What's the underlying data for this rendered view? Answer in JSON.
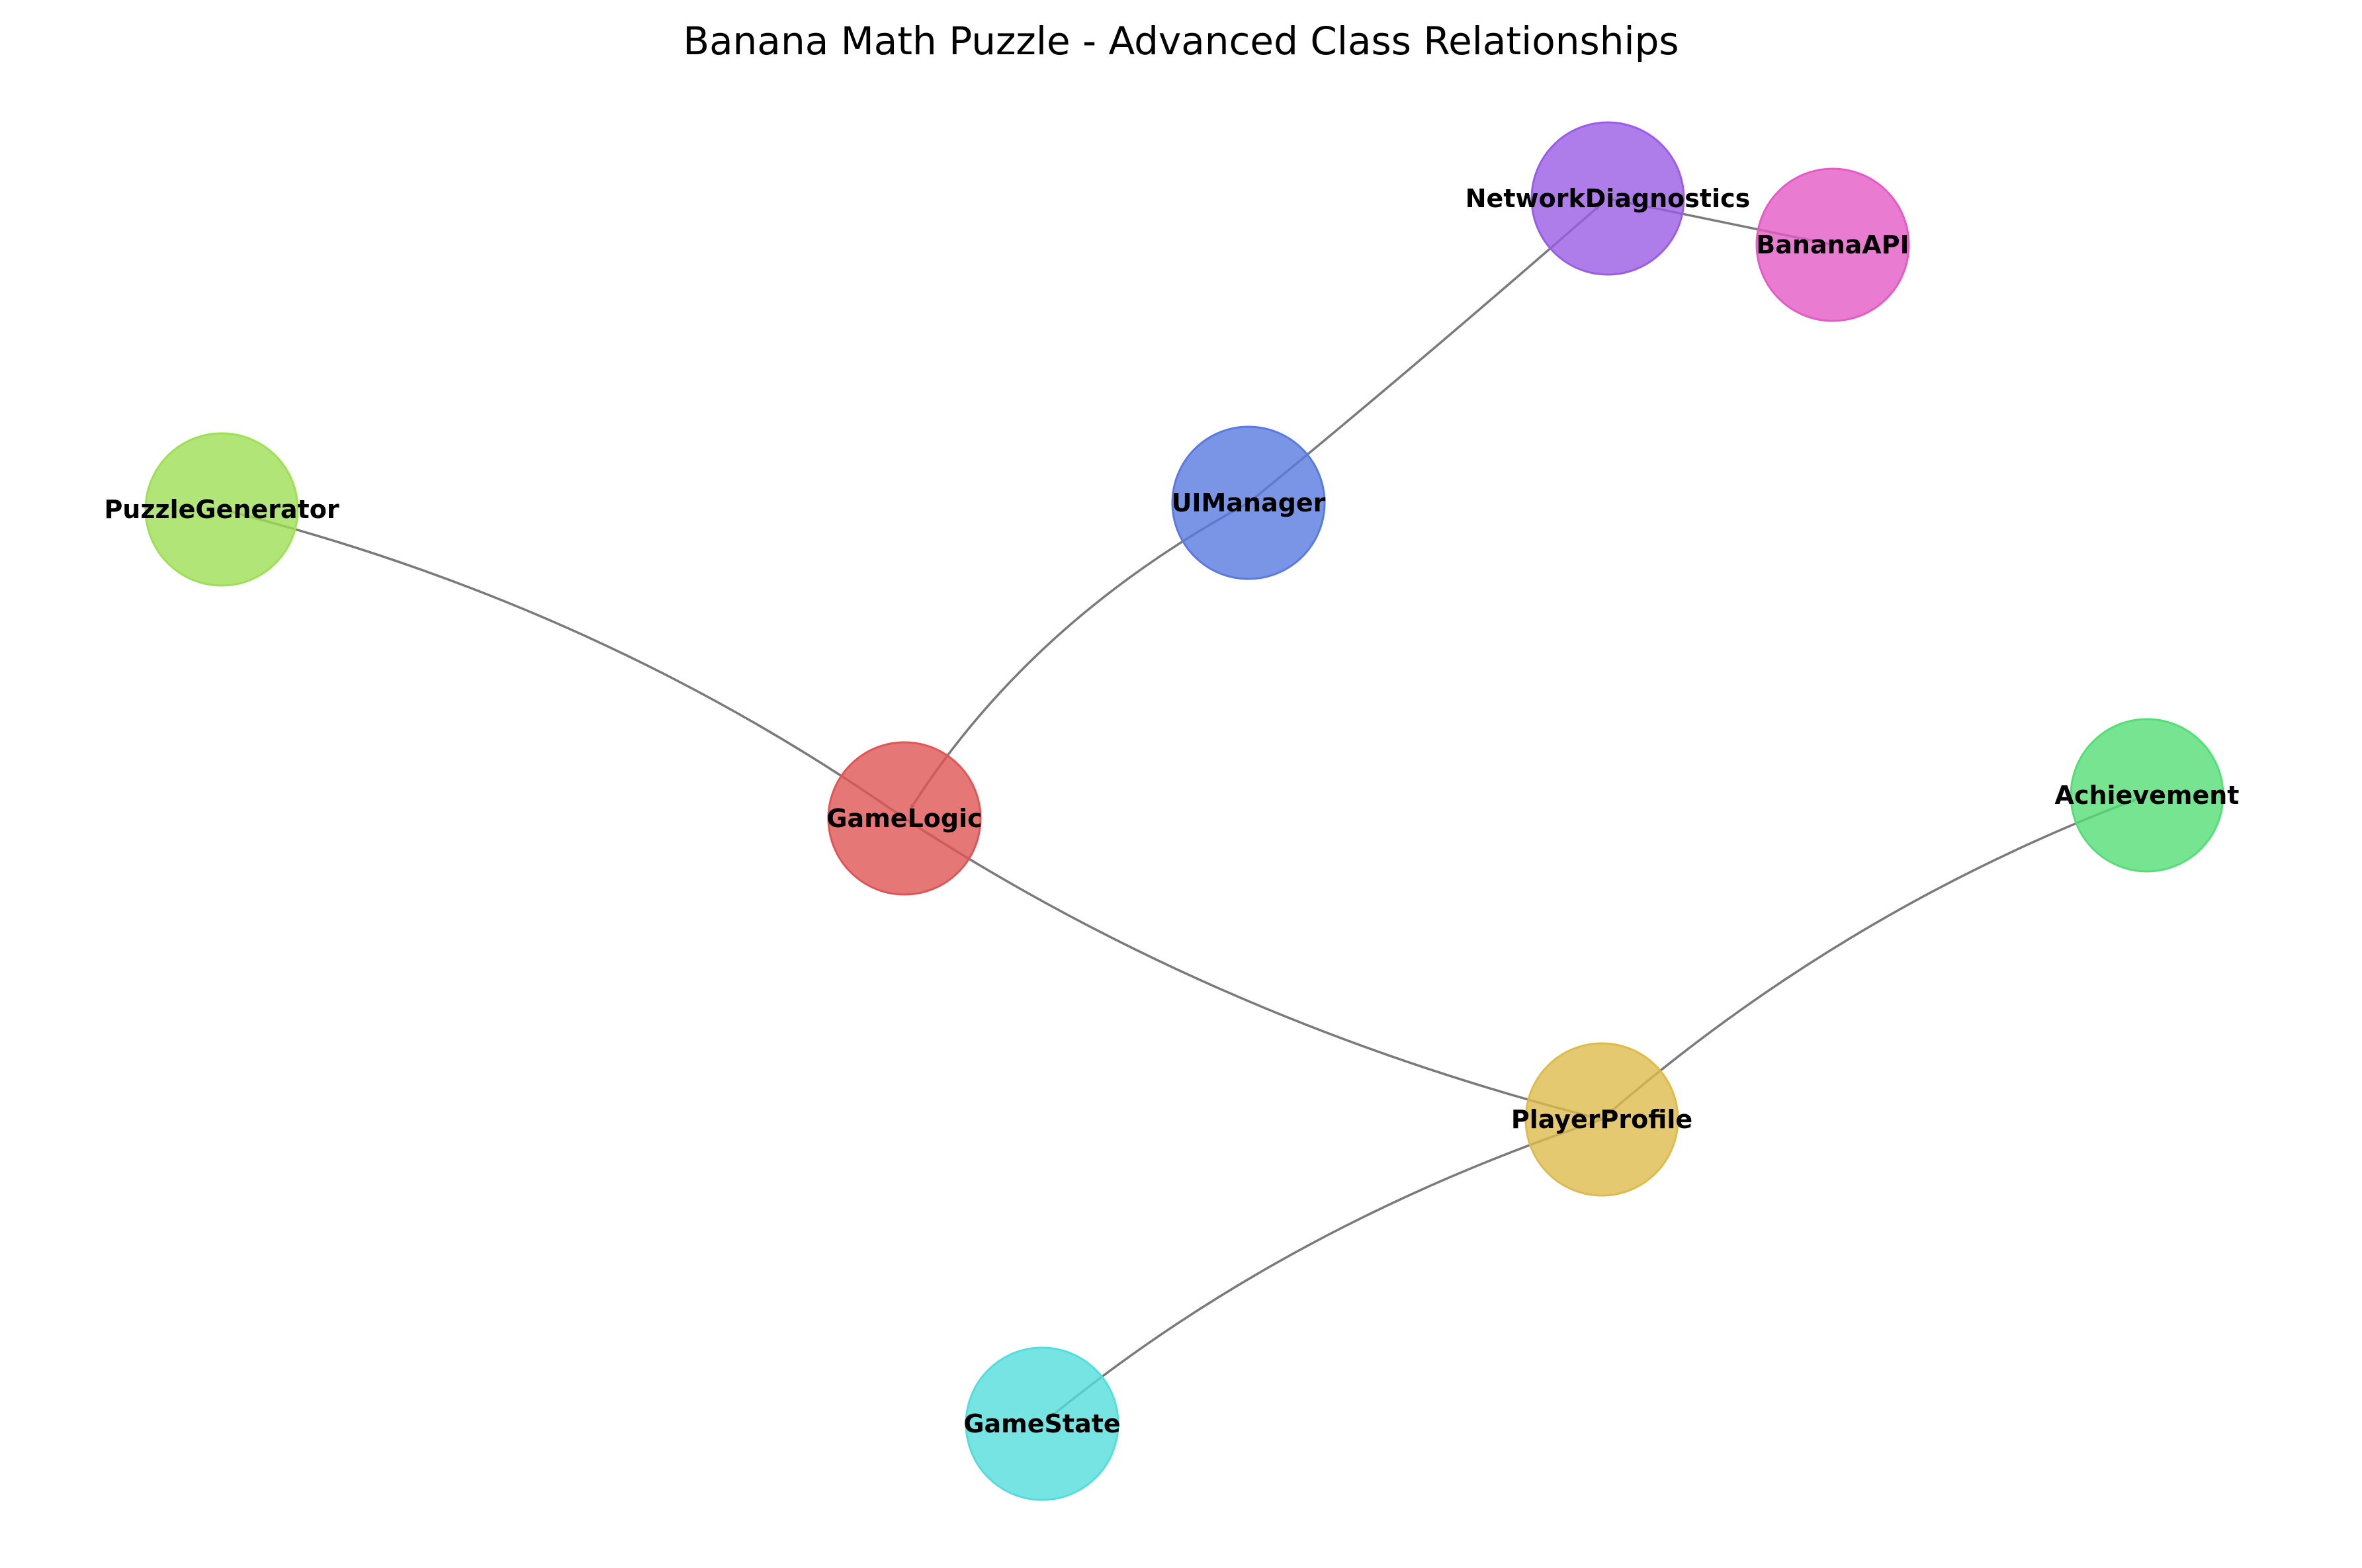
{
  "title": "Banana Math Puzzle - Advanced Class Relationships",
  "nodes": [
    {
      "id": "NetworkDiagnostics",
      "label": "NetworkDiagnostics",
      "color": "#9b5de5"
    },
    {
      "id": "BananaAPI",
      "label": "BananaAPI",
      "color": "#e35bc4"
    },
    {
      "id": "PuzzleGenerator",
      "label": "PuzzleGenerator",
      "color": "#9ddf55"
    },
    {
      "id": "UIManager",
      "label": "UIManager",
      "color": "#5a7ae0"
    },
    {
      "id": "GameLogic",
      "label": "GameLogic",
      "color": "#e05555"
    },
    {
      "id": "Achievement",
      "label": "Achievement",
      "color": "#55dd77"
    },
    {
      "id": "PlayerProfile",
      "label": "PlayerProfile",
      "color": "#ddbb4d"
    },
    {
      "id": "GameState",
      "label": "GameState",
      "color": "#55dddd"
    }
  ],
  "edges": [
    {
      "from": "NetworkDiagnostics",
      "to": "BananaAPI",
      "directed": false
    },
    {
      "from": "UIManager",
      "to": "NetworkDiagnostics",
      "directed": true
    },
    {
      "from": "UIManager",
      "to": "GameLogic",
      "directed": true
    },
    {
      "from": "PuzzleGenerator",
      "to": "GameLogic",
      "directed": false
    },
    {
      "from": "GameLogic",
      "to": "PlayerProfile",
      "directed": false
    },
    {
      "from": "PlayerProfile",
      "to": "Achievement",
      "directed": true
    },
    {
      "from": "PlayerProfile",
      "to": "GameState",
      "directed": true
    }
  ]
}
